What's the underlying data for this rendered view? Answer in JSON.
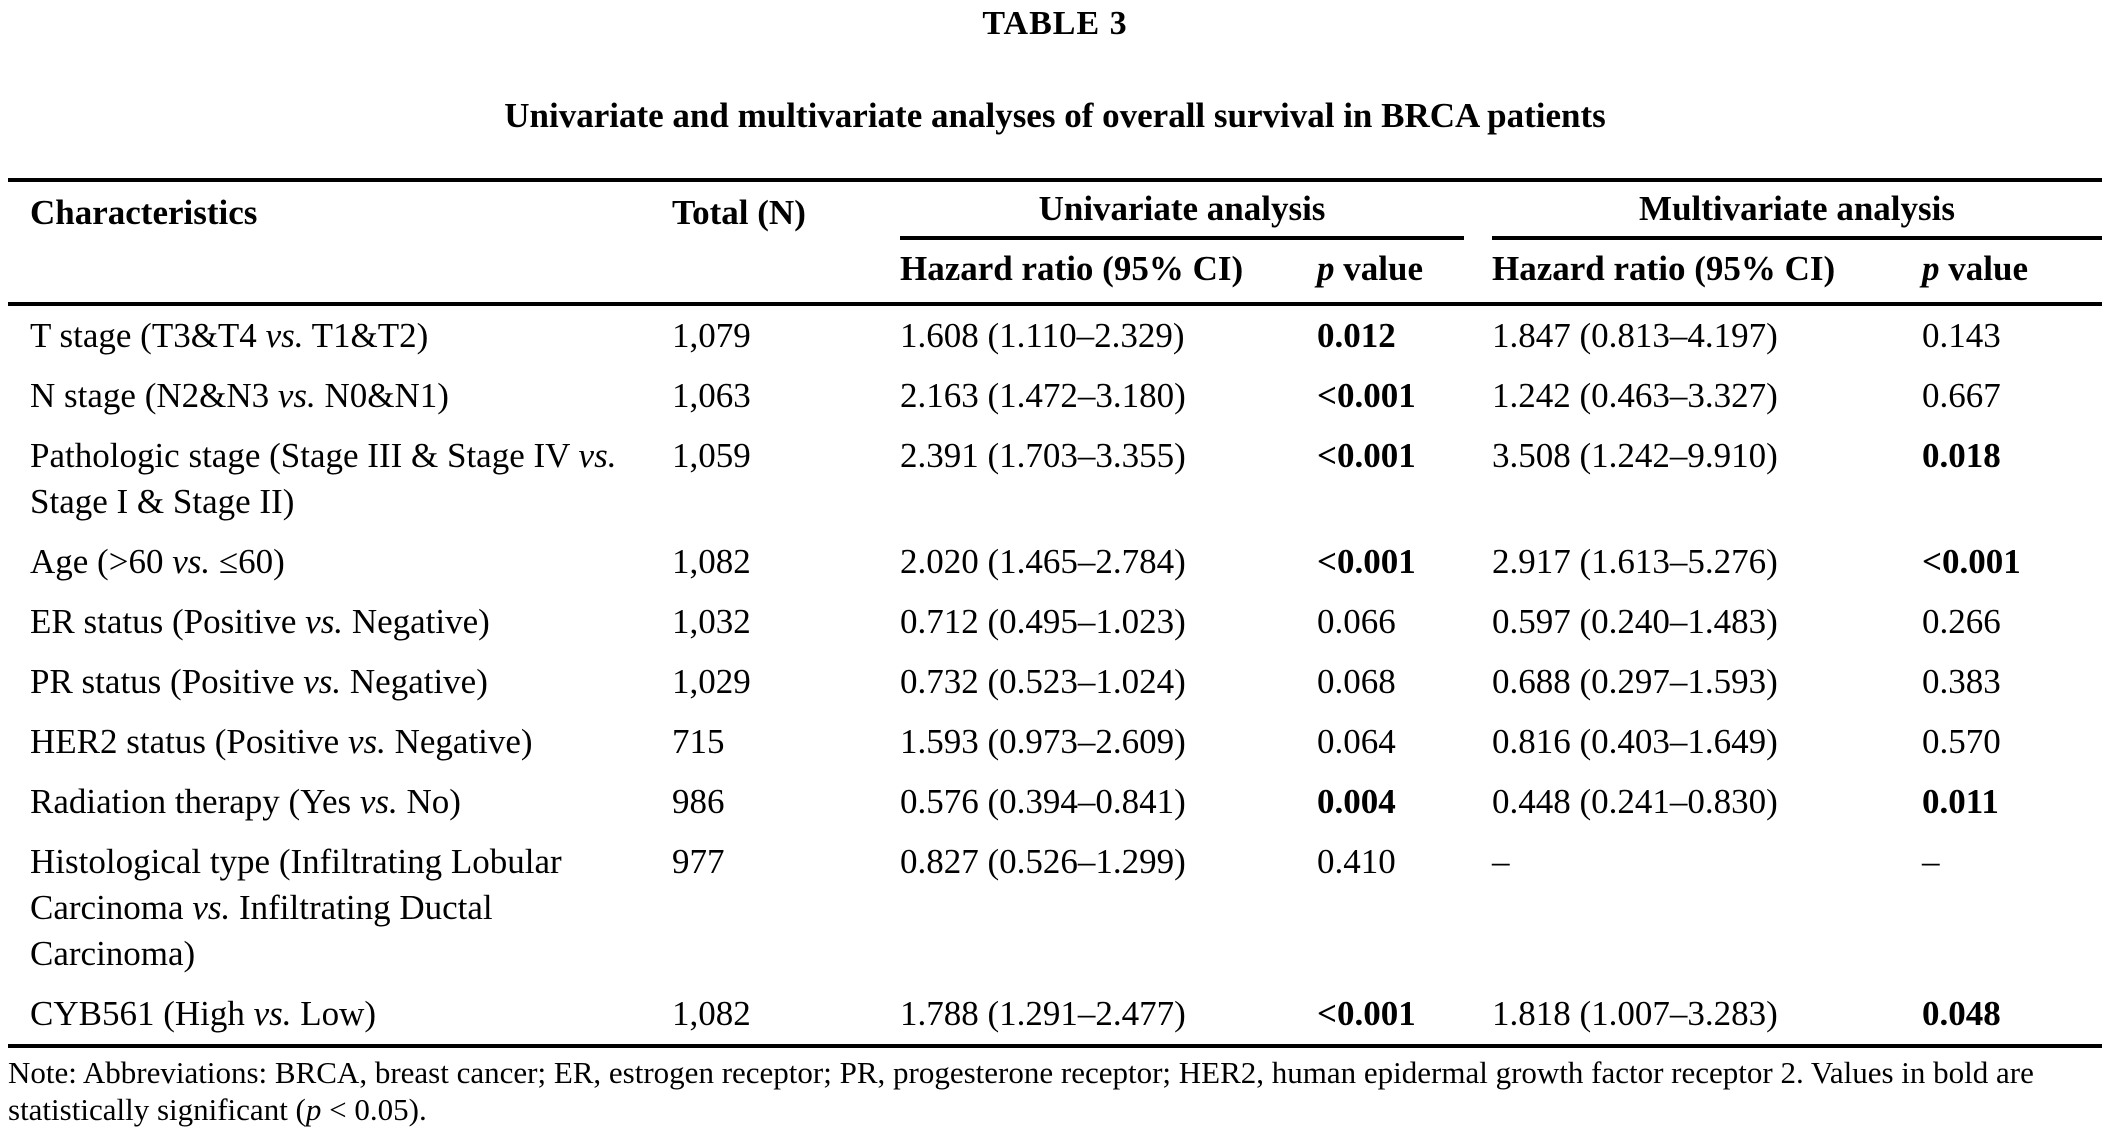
{
  "title": "TABLE 3",
  "subtitle": "Univariate and multivariate analyses of overall survival in BRCA patients",
  "table": {
    "vs_label": "vs.",
    "headers": {
      "characteristics": "Characteristics",
      "total": "Total (N)",
      "univariate_group": "Univariate analysis",
      "multivariate_group": "Multivariate analysis",
      "uni_hazard_ratio": "Hazard ratio (95% CI)",
      "multi_hazard_ratio": "Hazard ratio (95% CI)",
      "p_italic": "p",
      "p_rest": " value"
    },
    "rows": [
      {
        "char_pre": "T stage (T3&T4",
        "char_post": "T1&T2)",
        "total": "1,079",
        "uni_hr": "1.608 (1.110–2.329)",
        "uni_p": "0.012",
        "uni_p_bold": true,
        "multi_hr": "1.847 (0.813–4.197)",
        "multi_p": "0.143",
        "multi_p_bold": false
      },
      {
        "char_pre": "N stage (N2&N3",
        "char_post": "N0&N1)",
        "total": "1,063",
        "uni_hr": "2.163 (1.472–3.180)",
        "uni_p": "<0.001",
        "uni_p_bold": true,
        "multi_hr": "1.242 (0.463–3.327)",
        "multi_p": "0.667",
        "multi_p_bold": false
      },
      {
        "char_pre": "Pathologic stage (Stage III & Stage IV",
        "char_post": "Stage I & Stage II)",
        "total": "1,059",
        "uni_hr": "2.391 (1.703–3.355)",
        "uni_p": "<0.001",
        "uni_p_bold": true,
        "multi_hr": "3.508 (1.242–9.910)",
        "multi_p": "0.018",
        "multi_p_bold": true
      },
      {
        "char_pre": "Age (>60",
        "char_post": "≤60)",
        "total": "1,082",
        "uni_hr": "2.020 (1.465–2.784)",
        "uni_p": "<0.001",
        "uni_p_bold": true,
        "multi_hr": "2.917 (1.613–5.276)",
        "multi_p": "<0.001",
        "multi_p_bold": true
      },
      {
        "char_pre": "ER status (Positive",
        "char_post": "Negative)",
        "total": "1,032",
        "uni_hr": "0.712 (0.495–1.023)",
        "uni_p": "0.066",
        "uni_p_bold": false,
        "multi_hr": "0.597 (0.240–1.483)",
        "multi_p": "0.266",
        "multi_p_bold": false
      },
      {
        "char_pre": "PR status (Positive",
        "char_post": "Negative)",
        "total": "1,029",
        "uni_hr": "0.732 (0.523–1.024)",
        "uni_p": "0.068",
        "uni_p_bold": false,
        "multi_hr": "0.688 (0.297–1.593)",
        "multi_p": "0.383",
        "multi_p_bold": false
      },
      {
        "char_pre": "HER2 status (Positive",
        "char_post": "Negative)",
        "total": "715",
        "uni_hr": "1.593 (0.973–2.609)",
        "uni_p": "0.064",
        "uni_p_bold": false,
        "multi_hr": "0.816 (0.403–1.649)",
        "multi_p": "0.570",
        "multi_p_bold": false
      },
      {
        "char_pre": "Radiation therapy (Yes",
        "char_post": "No)",
        "total": "986",
        "uni_hr": "0.576 (0.394–0.841)",
        "uni_p": "0.004",
        "uni_p_bold": true,
        "multi_hr": "0.448 (0.241–0.830)",
        "multi_p": "0.011",
        "multi_p_bold": true
      },
      {
        "char_pre": "Histological type (Infiltrating Lobular Carcinoma",
        "char_post": "Infiltrating Ductal Carcinoma)",
        "total": "977",
        "uni_hr": "0.827 (0.526–1.299)",
        "uni_p": "0.410",
        "uni_p_bold": false,
        "multi_hr": "–",
        "multi_p": "–",
        "multi_p_bold": false
      },
      {
        "char_pre": "CYB561 (High",
        "char_post": "Low)",
        "total": "1,082",
        "uni_hr": "1.788 (1.291–2.477)",
        "uni_p": "<0.001",
        "uni_p_bold": true,
        "multi_hr": "1.818 (1.007–3.283)",
        "multi_p": "0.048",
        "multi_p_bold": true
      }
    ]
  },
  "note": {
    "pre": "Note: Abbreviations: BRCA, breast cancer; ER, estrogen receptor; PR, progesterone receptor; HER2, human epidermal growth factor receptor 2. Values in bold are statistically significant (",
    "p_italic": "p",
    "post": " < 0.05)."
  }
}
